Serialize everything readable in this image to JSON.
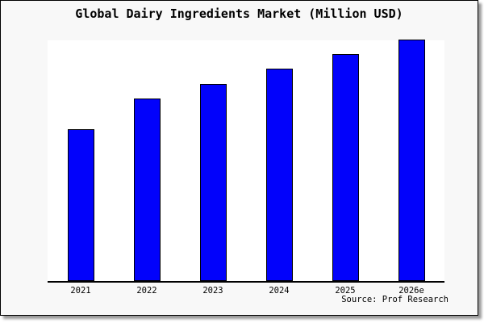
{
  "chart_data": {
    "type": "bar",
    "title": "Global Dairy Ingredients Market (Million USD)",
    "categories": [
      "2021",
      "2022",
      "2023",
      "2024",
      "2025",
      "2026e"
    ],
    "values": [
      63,
      75.5,
      81.5,
      88,
      94,
      100
    ],
    "values_note": "No y-axis scale shown in image; values are bar heights relative to the tallest bar (2026e = 100)",
    "xlabel": "",
    "ylabel": "",
    "ylim": [
      0,
      100
    ],
    "grid": false,
    "legend": false,
    "y_axis_visible": false
  },
  "source": {
    "text": "Source: Prof Research"
  },
  "colors": {
    "chart_background": "#f8f8f8",
    "plot_background": "#ffffff",
    "bar_fill": "#0202fb",
    "bar_border": "#000000",
    "axis_line": "#000000",
    "text": "#000000",
    "frame_border": "#000000",
    "drop_shadow": "#9a9a9a"
  }
}
